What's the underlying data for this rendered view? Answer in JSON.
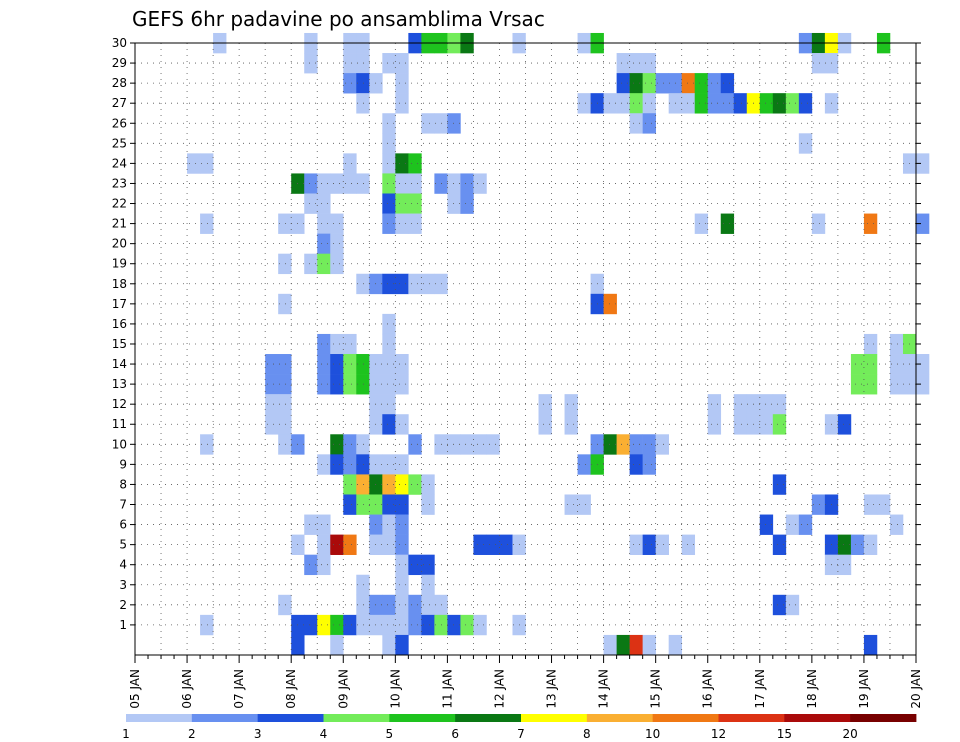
{
  "chart_data": {
    "type": "heatmap",
    "title": "GEFS 6hr padavine po ansamblima Vrsac",
    "xlabel": "",
    "ylabel": "",
    "y_ticks": [
      "1",
      "2",
      "3",
      "4",
      "5",
      "6",
      "7",
      "8",
      "9",
      "10",
      "11",
      "12",
      "13",
      "14",
      "15",
      "16",
      "17",
      "18",
      "19",
      "20",
      "21",
      "22",
      "23",
      "24",
      "25",
      "26",
      "27",
      "28",
      "29",
      "30"
    ],
    "ylim": [
      0,
      30
    ],
    "x_ticks": [
      "05 JAN",
      "06 JAN",
      "07 JAN",
      "08 JAN",
      "09 JAN",
      "10 JAN",
      "11 JAN",
      "12 JAN",
      "13 JAN",
      "14 JAN",
      "15 JAN",
      "16 JAN",
      "17 JAN",
      "18 JAN",
      "19 JAN",
      "20 JAN"
    ],
    "xlim_steps": [
      0,
      60
    ],
    "x_step_hours": 6,
    "grid": true,
    "colorbar": {
      "levels": [
        "1",
        "2",
        "3",
        "4",
        "5",
        "6",
        "7",
        "8",
        "10",
        "12",
        "15",
        "20"
      ],
      "colors": [
        "#b3c8f5",
        "#6890f0",
        "#1e50dc",
        "#73ec5a",
        "#1ec31e",
        "#0a7814",
        "#ffff00",
        "#faaf32",
        "#f07814",
        "#dc3214",
        "#aa0a0a",
        "#780000"
      ]
    },
    "value_scale": "class index 1-12 maps to colorbar bin",
    "cells": [
      [
        30,
        6,
        1
      ],
      [
        30,
        13,
        1
      ],
      [
        30,
        16,
        1
      ],
      [
        30,
        17,
        1
      ],
      [
        30,
        21,
        3
      ],
      [
        30,
        22,
        5
      ],
      [
        30,
        23,
        5
      ],
      [
        30,
        24,
        4
      ],
      [
        30,
        25,
        6
      ],
      [
        30,
        29,
        1
      ],
      [
        30,
        34,
        1
      ],
      [
        30,
        35,
        5
      ],
      [
        30,
        51,
        2
      ],
      [
        30,
        52,
        6
      ],
      [
        30,
        53,
        7
      ],
      [
        30,
        54,
        1
      ],
      [
        30,
        57,
        5
      ],
      [
        29,
        13,
        1
      ],
      [
        29,
        16,
        1
      ],
      [
        29,
        17,
        1
      ],
      [
        29,
        19,
        1
      ],
      [
        29,
        20,
        1
      ],
      [
        29,
        37,
        1
      ],
      [
        29,
        38,
        1
      ],
      [
        29,
        39,
        1
      ],
      [
        29,
        52,
        1
      ],
      [
        29,
        53,
        1
      ],
      [
        28,
        16,
        2
      ],
      [
        28,
        17,
        3
      ],
      [
        28,
        18,
        1
      ],
      [
        28,
        20,
        1
      ],
      [
        28,
        37,
        3
      ],
      [
        28,
        38,
        6
      ],
      [
        28,
        39,
        4
      ],
      [
        28,
        40,
        2
      ],
      [
        28,
        41,
        2
      ],
      [
        28,
        42,
        9
      ],
      [
        28,
        43,
        5
      ],
      [
        28,
        44,
        2
      ],
      [
        28,
        45,
        3
      ],
      [
        27,
        17,
        1
      ],
      [
        27,
        20,
        1
      ],
      [
        27,
        34,
        1
      ],
      [
        27,
        35,
        3
      ],
      [
        27,
        36,
        1
      ],
      [
        27,
        37,
        1
      ],
      [
        27,
        38,
        4
      ],
      [
        27,
        39,
        1
      ],
      [
        27,
        41,
        1
      ],
      [
        27,
        42,
        1
      ],
      [
        27,
        43,
        5
      ],
      [
        27,
        44,
        2
      ],
      [
        27,
        45,
        2
      ],
      [
        27,
        46,
        3
      ],
      [
        27,
        47,
        7
      ],
      [
        27,
        48,
        5
      ],
      [
        27,
        49,
        6
      ],
      [
        27,
        50,
        4
      ],
      [
        27,
        51,
        3
      ],
      [
        27,
        53,
        1
      ],
      [
        26,
        19,
        1
      ],
      [
        26,
        22,
        1
      ],
      [
        26,
        23,
        1
      ],
      [
        26,
        24,
        2
      ],
      [
        26,
        38,
        1
      ],
      [
        26,
        39,
        2
      ],
      [
        25,
        19,
        1
      ],
      [
        25,
        51,
        1
      ],
      [
        24,
        4,
        1
      ],
      [
        24,
        5,
        1
      ],
      [
        24,
        16,
        1
      ],
      [
        24,
        19,
        1
      ],
      [
        24,
        20,
        6
      ],
      [
        24,
        21,
        5
      ],
      [
        24,
        59,
        1
      ],
      [
        24,
        60,
        1
      ],
      [
        23,
        12,
        6
      ],
      [
        23,
        13,
        2
      ],
      [
        23,
        14,
        1
      ],
      [
        23,
        15,
        1
      ],
      [
        23,
        16,
        1
      ],
      [
        23,
        17,
        1
      ],
      [
        23,
        19,
        4
      ],
      [
        23,
        20,
        1
      ],
      [
        23,
        21,
        1
      ],
      [
        23,
        23,
        2
      ],
      [
        23,
        24,
        1
      ],
      [
        23,
        25,
        2
      ],
      [
        23,
        26,
        1
      ],
      [
        22,
        13,
        1
      ],
      [
        22,
        14,
        1
      ],
      [
        22,
        19,
        3
      ],
      [
        22,
        20,
        4
      ],
      [
        22,
        21,
        4
      ],
      [
        22,
        24,
        1
      ],
      [
        22,
        25,
        2
      ],
      [
        21,
        5,
        1
      ],
      [
        21,
        11,
        1
      ],
      [
        21,
        12,
        1
      ],
      [
        21,
        14,
        1
      ],
      [
        21,
        15,
        1
      ],
      [
        21,
        19,
        2
      ],
      [
        21,
        20,
        1
      ],
      [
        21,
        21,
        1
      ],
      [
        21,
        43,
        1
      ],
      [
        21,
        45,
        6
      ],
      [
        21,
        52,
        1
      ],
      [
        21,
        56,
        9
      ],
      [
        21,
        60,
        2
      ],
      [
        20,
        14,
        2
      ],
      [
        20,
        15,
        1
      ],
      [
        19,
        11,
        1
      ],
      [
        19,
        13,
        1
      ],
      [
        19,
        14,
        4
      ],
      [
        19,
        15,
        1
      ],
      [
        18,
        17,
        1
      ],
      [
        18,
        18,
        2
      ],
      [
        18,
        19,
        3
      ],
      [
        18,
        20,
        3
      ],
      [
        18,
        21,
        1
      ],
      [
        18,
        22,
        1
      ],
      [
        18,
        23,
        1
      ],
      [
        18,
        35,
        1
      ],
      [
        17,
        11,
        1
      ],
      [
        17,
        35,
        3
      ],
      [
        17,
        36,
        9
      ],
      [
        16,
        19,
        1
      ],
      [
        15,
        14,
        2
      ],
      [
        15,
        15,
        1
      ],
      [
        15,
        16,
        1
      ],
      [
        15,
        19,
        1
      ],
      [
        15,
        56,
        1
      ],
      [
        15,
        58,
        1
      ],
      [
        15,
        59,
        4
      ],
      [
        14,
        10,
        2
      ],
      [
        14,
        11,
        2
      ],
      [
        14,
        14,
        2
      ],
      [
        14,
        15,
        3
      ],
      [
        14,
        16,
        4
      ],
      [
        14,
        17,
        5
      ],
      [
        14,
        18,
        1
      ],
      [
        14,
        19,
        1
      ],
      [
        14,
        20,
        1
      ],
      [
        14,
        55,
        4
      ],
      [
        14,
        56,
        4
      ],
      [
        14,
        58,
        1
      ],
      [
        14,
        59,
        1
      ],
      [
        14,
        60,
        1
      ],
      [
        13,
        10,
        2
      ],
      [
        13,
        11,
        2
      ],
      [
        13,
        14,
        2
      ],
      [
        13,
        15,
        3
      ],
      [
        13,
        16,
        4
      ],
      [
        13,
        17,
        5
      ],
      [
        13,
        18,
        1
      ],
      [
        13,
        19,
        1
      ],
      [
        13,
        20,
        1
      ],
      [
        13,
        55,
        4
      ],
      [
        13,
        56,
        4
      ],
      [
        13,
        58,
        1
      ],
      [
        13,
        59,
        1
      ],
      [
        13,
        60,
        1
      ],
      [
        12,
        10,
        1
      ],
      [
        12,
        11,
        1
      ],
      [
        12,
        18,
        1
      ],
      [
        12,
        19,
        1
      ],
      [
        12,
        31,
        1
      ],
      [
        12,
        33,
        1
      ],
      [
        12,
        44,
        1
      ],
      [
        12,
        46,
        1
      ],
      [
        12,
        47,
        1
      ],
      [
        12,
        48,
        1
      ],
      [
        12,
        49,
        1
      ],
      [
        11,
        10,
        1
      ],
      [
        11,
        11,
        1
      ],
      [
        11,
        18,
        1
      ],
      [
        11,
        19,
        3
      ],
      [
        11,
        20,
        1
      ],
      [
        11,
        31,
        1
      ],
      [
        11,
        33,
        1
      ],
      [
        11,
        44,
        1
      ],
      [
        11,
        46,
        1
      ],
      [
        11,
        47,
        1
      ],
      [
        11,
        48,
        1
      ],
      [
        11,
        49,
        4
      ],
      [
        11,
        53,
        1
      ],
      [
        11,
        54,
        3
      ],
      [
        10,
        5,
        1
      ],
      [
        10,
        11,
        1
      ],
      [
        10,
        12,
        2
      ],
      [
        10,
        15,
        6
      ],
      [
        10,
        16,
        2
      ],
      [
        10,
        17,
        1
      ],
      [
        10,
        21,
        2
      ],
      [
        10,
        23,
        1
      ],
      [
        10,
        24,
        1
      ],
      [
        10,
        25,
        1
      ],
      [
        10,
        26,
        1
      ],
      [
        10,
        27,
        1
      ],
      [
        10,
        35,
        2
      ],
      [
        10,
        36,
        6
      ],
      [
        10,
        37,
        8
      ],
      [
        10,
        38,
        2
      ],
      [
        10,
        39,
        2
      ],
      [
        10,
        40,
        1
      ],
      [
        9,
        14,
        1
      ],
      [
        9,
        15,
        3
      ],
      [
        9,
        16,
        2
      ],
      [
        9,
        17,
        3
      ],
      [
        9,
        18,
        1
      ],
      [
        9,
        19,
        1
      ],
      [
        9,
        20,
        1
      ],
      [
        9,
        34,
        2
      ],
      [
        9,
        35,
        5
      ],
      [
        9,
        38,
        3
      ],
      [
        9,
        39,
        2
      ],
      [
        8,
        16,
        4
      ],
      [
        8,
        17,
        8
      ],
      [
        8,
        18,
        6
      ],
      [
        8,
        19,
        8
      ],
      [
        8,
        20,
        7
      ],
      [
        8,
        21,
        4
      ],
      [
        8,
        22,
        1
      ],
      [
        8,
        49,
        3
      ],
      [
        7,
        16,
        3
      ],
      [
        7,
        17,
        4
      ],
      [
        7,
        18,
        4
      ],
      [
        7,
        19,
        3
      ],
      [
        7,
        20,
        3
      ],
      [
        7,
        22,
        1
      ],
      [
        7,
        33,
        1
      ],
      [
        7,
        34,
        1
      ],
      [
        7,
        52,
        2
      ],
      [
        7,
        53,
        3
      ],
      [
        7,
        56,
        1
      ],
      [
        7,
        57,
        1
      ],
      [
        6,
        13,
        1
      ],
      [
        6,
        14,
        1
      ],
      [
        6,
        18,
        2
      ],
      [
        6,
        19,
        1
      ],
      [
        6,
        20,
        2
      ],
      [
        6,
        48,
        3
      ],
      [
        6,
        50,
        1
      ],
      [
        6,
        51,
        2
      ],
      [
        6,
        58,
        1
      ],
      [
        5,
        12,
        1
      ],
      [
        5,
        14,
        1
      ],
      [
        5,
        15,
        11
      ],
      [
        5,
        16,
        9
      ],
      [
        5,
        18,
        1
      ],
      [
        5,
        19,
        1
      ],
      [
        5,
        20,
        2
      ],
      [
        5,
        26,
        3
      ],
      [
        5,
        27,
        3
      ],
      [
        5,
        28,
        3
      ],
      [
        5,
        29,
        1
      ],
      [
        5,
        38,
        1
      ],
      [
        5,
        39,
        3
      ],
      [
        5,
        40,
        1
      ],
      [
        5,
        42,
        1
      ],
      [
        5,
        49,
        3
      ],
      [
        5,
        53,
        3
      ],
      [
        5,
        54,
        6
      ],
      [
        5,
        55,
        2
      ],
      [
        5,
        56,
        1
      ],
      [
        4,
        13,
        2
      ],
      [
        4,
        14,
        1
      ],
      [
        4,
        20,
        1
      ],
      [
        4,
        21,
        3
      ],
      [
        4,
        22,
        3
      ],
      [
        4,
        53,
        1
      ],
      [
        4,
        54,
        1
      ],
      [
        3,
        17,
        1
      ],
      [
        3,
        20,
        1
      ],
      [
        3,
        22,
        1
      ],
      [
        2,
        11,
        1
      ],
      [
        2,
        17,
        1
      ],
      [
        2,
        18,
        2
      ],
      [
        2,
        19,
        2
      ],
      [
        2,
        20,
        1
      ],
      [
        2,
        21,
        2
      ],
      [
        2,
        22,
        1
      ],
      [
        2,
        23,
        1
      ],
      [
        2,
        49,
        3
      ],
      [
        2,
        50,
        1
      ],
      [
        1,
        5,
        1
      ],
      [
        1,
        12,
        3
      ],
      [
        1,
        13,
        3
      ],
      [
        1,
        14,
        7
      ],
      [
        1,
        15,
        5
      ],
      [
        1,
        16,
        3
      ],
      [
        1,
        17,
        1
      ],
      [
        1,
        18,
        1
      ],
      [
        1,
        19,
        1
      ],
      [
        1,
        20,
        1
      ],
      [
        1,
        21,
        2
      ],
      [
        1,
        22,
        3
      ],
      [
        1,
        23,
        4
      ],
      [
        1,
        24,
        3
      ],
      [
        1,
        25,
        4
      ],
      [
        1,
        26,
        1
      ],
      [
        1,
        29,
        1
      ],
      [
        0,
        12,
        3
      ],
      [
        0,
        15,
        1
      ],
      [
        0,
        19,
        1
      ],
      [
        0,
        20,
        3
      ],
      [
        0,
        36,
        1
      ],
      [
        0,
        37,
        6
      ],
      [
        0,
        38,
        10
      ],
      [
        0,
        39,
        1
      ],
      [
        0,
        41,
        1
      ],
      [
        0,
        56,
        3
      ]
    ]
  }
}
